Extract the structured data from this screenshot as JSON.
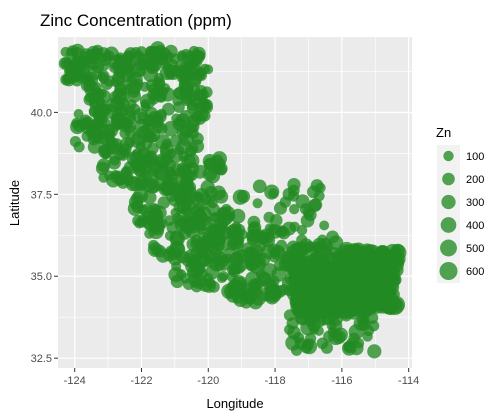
{
  "chart_data": {
    "type": "scatter",
    "title": "Zinc Concentration (ppm)",
    "xlabel": "Longitude",
    "ylabel": "Latitude",
    "xlim": [
      -124.5,
      -113.9
    ],
    "ylim": [
      32.2,
      42.3
    ],
    "x_ticks": [
      -124,
      -122,
      -120,
      -118,
      -116,
      -114
    ],
    "x_tick_labels": [
      "-124",
      "-122",
      "-120",
      "-118",
      "-116",
      "-114"
    ],
    "y_ticks": [
      32.5,
      35.0,
      37.5,
      40.0
    ],
    "y_tick_labels": [
      "32.5",
      "35.0",
      "37.5",
      "40.0"
    ],
    "grid": true,
    "point_color": "#228B22",
    "panel_background": "#EBEBEB",
    "legend": {
      "title": "Zn",
      "position": "right",
      "entries": [
        {
          "label": "100",
          "value": 100
        },
        {
          "label": "200",
          "value": 200
        },
        {
          "label": "300",
          "value": 300
        },
        {
          "label": "400",
          "value": 400
        },
        {
          "label": "500",
          "value": 500
        },
        {
          "label": "600",
          "value": 600
        }
      ]
    },
    "regions": [
      {
        "lon_range": [
          -124.3,
          -123.6
        ],
        "lat_range": [
          40.9,
          41.9
        ],
        "n": 35,
        "zn": [
          80,
          320
        ]
      },
      {
        "lon_range": [
          -123.6,
          -122.2
        ],
        "lat_range": [
          40.0,
          41.9
        ],
        "n": 80,
        "zn": [
          80,
          380
        ]
      },
      {
        "lon_range": [
          -122.2,
          -120.2
        ],
        "lat_range": [
          40.6,
          41.95
        ],
        "n": 70,
        "zn": [
          80,
          380
        ]
      },
      {
        "lon_range": [
          -120.7,
          -120.0
        ],
        "lat_range": [
          39.6,
          41.9
        ],
        "n": 40,
        "zn": [
          80,
          320
        ]
      },
      {
        "lon_range": [
          -124.0,
          -122.3
        ],
        "lat_range": [
          38.8,
          40.1
        ],
        "n": 55,
        "zn": [
          80,
          380
        ]
      },
      {
        "lon_range": [
          -122.3,
          -120.3
        ],
        "lat_range": [
          38.5,
          40.6
        ],
        "n": 75,
        "zn": [
          80,
          420
        ]
      },
      {
        "lon_range": [
          -123.2,
          -121.8
        ],
        "lat_range": [
          37.8,
          38.9
        ],
        "n": 40,
        "zn": [
          80,
          380
        ]
      },
      {
        "lon_range": [
          -121.8,
          -119.6
        ],
        "lat_range": [
          37.3,
          38.6
        ],
        "n": 55,
        "zn": [
          80,
          420
        ]
      },
      {
        "lon_range": [
          -122.3,
          -120.9
        ],
        "lat_range": [
          36.6,
          37.9
        ],
        "n": 40,
        "zn": [
          80,
          400
        ]
      },
      {
        "lon_range": [
          -120.9,
          -118.9
        ],
        "lat_range": [
          36.2,
          37.5
        ],
        "n": 55,
        "zn": [
          80,
          420
        ]
      },
      {
        "lon_range": [
          -121.8,
          -120.2
        ],
        "lat_range": [
          35.6,
          36.7
        ],
        "n": 40,
        "zn": [
          80,
          400
        ]
      },
      {
        "lon_range": [
          -120.2,
          -117.8
        ],
        "lat_range": [
          35.3,
          36.5
        ],
        "n": 70,
        "zn": [
          80,
          420
        ]
      },
      {
        "lon_range": [
          -118.7,
          -116.5
        ],
        "lat_range": [
          36.2,
          37.8
        ],
        "n": 35,
        "zn": [
          80,
          380
        ]
      },
      {
        "lon_range": [
          -121.0,
          -119.2
        ],
        "lat_range": [
          34.6,
          35.6
        ],
        "n": 40,
        "zn": [
          80,
          380
        ]
      },
      {
        "lon_range": [
          -119.4,
          -117.4
        ],
        "lat_range": [
          34.2,
          35.4
        ],
        "n": 60,
        "zn": [
          80,
          420
        ]
      },
      {
        "lon_range": [
          -117.7,
          -115.9
        ],
        "lat_range": [
          35.3,
          36.2
        ],
        "n": 50,
        "zn": [
          80,
          400
        ]
      },
      {
        "lon_range": [
          -117.4,
          -115.3
        ],
        "lat_range": [
          33.9,
          35.4
        ],
        "n": 320,
        "zn": [
          150,
          600
        ]
      },
      {
        "lon_range": [
          -115.9,
          -114.3
        ],
        "lat_range": [
          34.0,
          35.8
        ],
        "n": 200,
        "zn": [
          150,
          600
        ]
      },
      {
        "lon_range": [
          -117.6,
          -115.0
        ],
        "lat_range": [
          32.7,
          33.9
        ],
        "n": 55,
        "zn": [
          80,
          420
        ]
      }
    ]
  }
}
